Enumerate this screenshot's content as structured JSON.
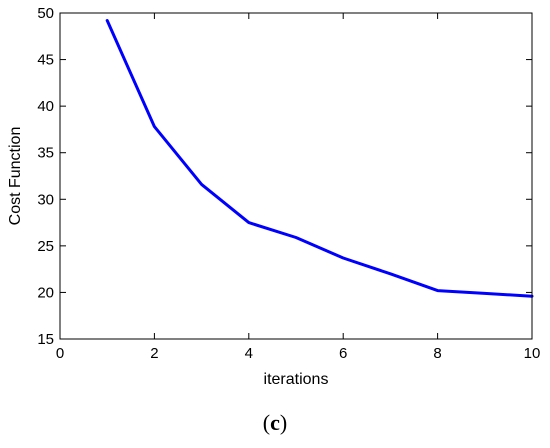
{
  "chart_data": {
    "type": "line",
    "title": "",
    "xlabel": "iterations",
    "ylabel": "Cost Function",
    "xlim": [
      0,
      10
    ],
    "ylim": [
      15,
      50
    ],
    "xticks": [
      0,
      2,
      4,
      6,
      8,
      10
    ],
    "yticks": [
      15,
      20,
      25,
      30,
      35,
      40,
      45,
      50
    ],
    "grid": false,
    "legend": "none",
    "series": [
      {
        "color": "#0000ff",
        "x": [
          1,
          2,
          3,
          4,
          5,
          6,
          7,
          8,
          9,
          10
        ],
        "y": [
          49.2,
          37.8,
          31.6,
          27.5,
          25.9,
          23.7,
          22.0,
          20.2,
          19.9,
          19.6
        ]
      }
    ]
  },
  "caption": {
    "open": "(",
    "letter": "c",
    "close": ")"
  }
}
